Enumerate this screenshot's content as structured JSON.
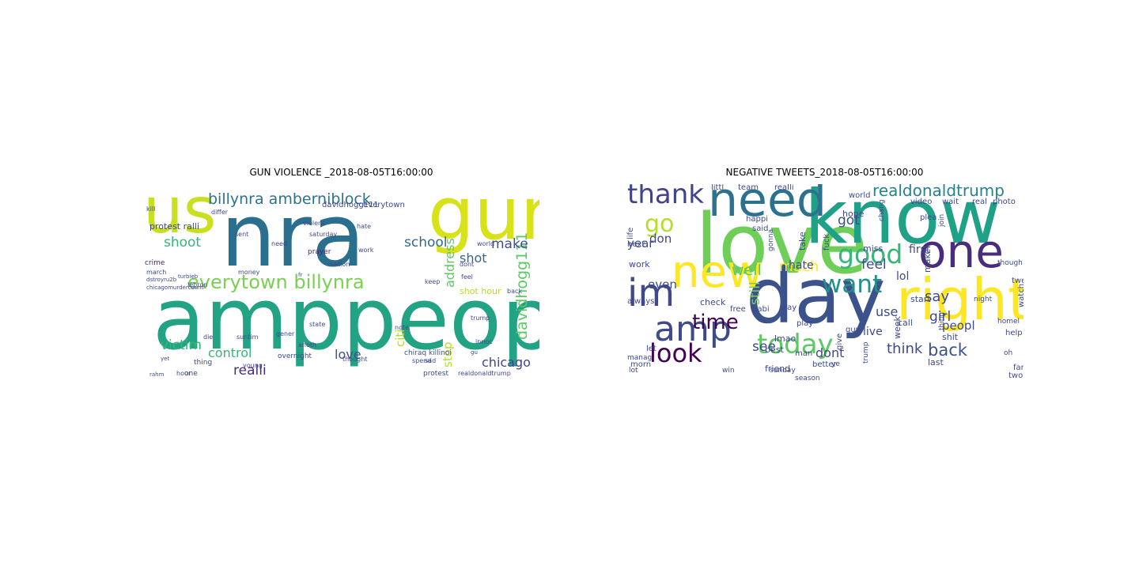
{
  "chart_data": [
    {
      "type": "wordcloud",
      "title": "GUN VIOLENCE _2018-08-05T16:00:00",
      "words": [
        {
          "text": "nra",
          "weight": 1.0,
          "color": "#2a6f8e"
        },
        {
          "text": "amppeopl",
          "weight": 0.98,
          "color": "#22a384"
        },
        {
          "text": "gun",
          "weight": 0.85,
          "color": "#d8e219"
        },
        {
          "text": "us",
          "weight": 0.72,
          "color": "#c8e020"
        },
        {
          "text": "everytown billynra",
          "weight": 0.3,
          "color": "#7ad151"
        },
        {
          "text": "billynra amberniblock",
          "weight": 0.26,
          "color": "#2c728e"
        },
        {
          "text": "chicago",
          "weight": 0.24,
          "color": "#414487"
        },
        {
          "text": "davidhogg111",
          "weight": 0.22,
          "color": "#5ec962"
        },
        {
          "text": "school",
          "weight": 0.21,
          "color": "#31688e"
        },
        {
          "text": "shoot",
          "weight": 0.21,
          "color": "#35b779"
        },
        {
          "text": "victim",
          "weight": 0.2,
          "color": "#35b779"
        },
        {
          "text": "realli",
          "weight": 0.2,
          "color": "#472d7b"
        },
        {
          "text": "love",
          "weight": 0.19,
          "color": "#3b528b"
        },
        {
          "text": "make",
          "weight": 0.19,
          "color": "#3b528b"
        },
        {
          "text": "shot",
          "weight": 0.19,
          "color": "#31688e"
        },
        {
          "text": "address",
          "weight": 0.17,
          "color": "#5ec962"
        },
        {
          "text": "control",
          "weight": 0.17,
          "color": "#35b779"
        },
        {
          "text": "citi",
          "weight": 0.17,
          "color": "#b5de2b"
        },
        {
          "text": "stop",
          "weight": 0.17,
          "color": "#b5de2b"
        },
        {
          "text": "protest ralli",
          "weight": 0.13,
          "color": "#3e4a89"
        },
        {
          "text": "shot hour",
          "weight": 0.13,
          "color": "#b5de2b"
        },
        {
          "text": "everytown",
          "weight": 0.1,
          "color": "#3e4a89"
        },
        {
          "text": "davidhogg111",
          "weight": 0.1,
          "color": "#3e4a89"
        },
        {
          "text": "crime",
          "weight": 0.09,
          "color": "#481f70"
        },
        {
          "text": "prayer",
          "weight": 0.09,
          "color": "#481f70"
        },
        {
          "text": "overnight",
          "weight": 0.09,
          "color": "#3e4a89"
        },
        {
          "text": "chiraq killinoi",
          "weight": 0.09,
          "color": "#3b528b"
        },
        {
          "text": "thing",
          "weight": 0.09,
          "color": "#3e4a89"
        },
        {
          "text": "one",
          "weight": 0.09,
          "color": "#3e4a89"
        },
        {
          "text": "protest",
          "weight": 0.09,
          "color": "#3e4a89"
        },
        {
          "text": "anoth",
          "weight": 0.08,
          "color": "#3e4a89"
        },
        {
          "text": "feel",
          "weight": 0.08,
          "color": "#3e4a89"
        },
        {
          "text": "dont",
          "weight": 0.08,
          "color": "#3e4a89"
        },
        {
          "text": "sad",
          "weight": 0.08,
          "color": "#3e4a89"
        },
        {
          "text": "trump",
          "weight": 0.08,
          "color": "#3e4a89"
        },
        {
          "text": "need",
          "weight": 0.08,
          "color": "#3e4a89"
        },
        {
          "text": "sent",
          "weight": 0.08,
          "color": "#3e4a89"
        },
        {
          "text": "differ",
          "weight": 0.08,
          "color": "#3e4a89"
        },
        {
          "text": "saturday",
          "weight": 0.08,
          "color": "#3e4a89"
        },
        {
          "text": "hour",
          "weight": 0.07,
          "color": "#3e4a89"
        },
        {
          "text": "young",
          "weight": 0.07,
          "color": "#3e4a89"
        },
        {
          "text": "suntim",
          "weight": 0.07,
          "color": "#3e4a89"
        },
        {
          "text": "hate",
          "weight": 0.07,
          "color": "#3e4a89"
        },
        {
          "text": "nation",
          "weight": 0.07,
          "color": "#3e4a89"
        },
        {
          "text": "work",
          "weight": 0.07,
          "color": "#3e4a89"
        },
        {
          "text": "money",
          "weight": 0.07,
          "color": "#3e4a89"
        },
        {
          "text": "lebron",
          "weight": 0.07,
          "color": "#3e4a89"
        },
        {
          "text": "march",
          "weight": 0.07,
          "color": "#3e4a89"
        },
        {
          "text": "gener",
          "weight": 0.07,
          "color": "#3e4a89"
        },
        {
          "text": "thought",
          "weight": 0.07,
          "color": "#3e4a89"
        },
        {
          "text": "spend",
          "weight": 0.07,
          "color": "#3e4a89"
        },
        {
          "text": "back",
          "weight": 0.07,
          "color": "#3e4a89"
        },
        {
          "text": "world",
          "weight": 0.07,
          "color": "#3e4a89"
        },
        {
          "text": "keep",
          "weight": 0.07,
          "color": "#3e4a89"
        },
        {
          "text": "die",
          "weight": 0.07,
          "color": "#3e4a89"
        },
        {
          "text": "innoc",
          "weight": 0.07,
          "color": "#3e4a89"
        },
        {
          "text": "note",
          "weight": 0.07,
          "color": "#3e4a89"
        },
        {
          "text": "state",
          "weight": 0.07,
          "color": "#3e4a89"
        },
        {
          "text": "kill",
          "weight": 0.07,
          "color": "#3e4a89"
        },
        {
          "text": "violenc",
          "weight": 0.07,
          "color": "#3e4a89"
        },
        {
          "text": "realdonaldtrump",
          "weight": 0.07,
          "color": "#3e4a89"
        },
        {
          "text": "chicagomurdercount",
          "weight": 0.07,
          "color": "#3e4a89"
        },
        {
          "text": "dstroyru2b",
          "weight": 0.07,
          "color": "#3e4a89"
        },
        {
          "text": "turbieb",
          "weight": 0.07,
          "color": "#3e4a89"
        },
        {
          "text": "fr",
          "weight": 0.06,
          "color": "#3e4a89"
        },
        {
          "text": "gu",
          "weight": 0.06,
          "color": "#3e4a89"
        },
        {
          "text": "yet",
          "weight": 0.06,
          "color": "#3e4a89"
        },
        {
          "text": "rahm",
          "weight": 0.06,
          "color": "#3e4a89"
        }
      ]
    },
    {
      "type": "wordcloud",
      "title": "NEGATIVE TWEETS_2018-08-05T16:00:00",
      "words": [
        {
          "text": "love",
          "weight": 1.0,
          "color": "#6ece58"
        },
        {
          "text": "know",
          "weight": 0.98,
          "color": "#1fa187"
        },
        {
          "text": "day",
          "weight": 0.97,
          "color": "#3b528b"
        },
        {
          "text": "right",
          "weight": 0.7,
          "color": "#fde725"
        },
        {
          "text": "one",
          "weight": 0.58,
          "color": "#472d7b"
        },
        {
          "text": "need",
          "weight": 0.56,
          "color": "#2c728e"
        },
        {
          "text": "new",
          "weight": 0.55,
          "color": "#fde725"
        },
        {
          "text": "im",
          "weight": 0.48,
          "color": "#3e4a89"
        },
        {
          "text": "amp",
          "weight": 0.45,
          "color": "#3e4a89"
        },
        {
          "text": "today",
          "weight": 0.36,
          "color": "#5ec962"
        },
        {
          "text": "thank",
          "weight": 0.36,
          "color": "#414487"
        },
        {
          "text": "good",
          "weight": 0.34,
          "color": "#35b779"
        },
        {
          "text": "look",
          "weight": 0.33,
          "color": "#440154"
        },
        {
          "text": "want",
          "weight": 0.32,
          "color": "#21918c"
        },
        {
          "text": "go",
          "weight": 0.3,
          "color": "#b5de2b"
        },
        {
          "text": "time",
          "weight": 0.26,
          "color": "#440154"
        },
        {
          "text": "back",
          "weight": 0.21,
          "color": "#3b528b"
        },
        {
          "text": "realdonaldtrump",
          "weight": 0.2,
          "color": "#26828e"
        },
        {
          "text": "well",
          "weight": 0.19,
          "color": "#5ec962"
        },
        {
          "text": "much",
          "weight": 0.18,
          "color": "#fde725"
        },
        {
          "text": "think",
          "weight": 0.18,
          "color": "#3e4a89"
        },
        {
          "text": "say",
          "weight": 0.18,
          "color": "#3e4a89"
        },
        {
          "text": "got",
          "weight": 0.17,
          "color": "#3e4a89"
        },
        {
          "text": "feel",
          "weight": 0.17,
          "color": "#3e4a89"
        },
        {
          "text": "girl",
          "weight": 0.17,
          "color": "#3e4a89"
        },
        {
          "text": "still",
          "weight": 0.17,
          "color": "#7ad151"
        },
        {
          "text": "see",
          "weight": 0.17,
          "color": "#3e4a89"
        },
        {
          "text": "dont",
          "weight": 0.17,
          "color": "#3e4a89"
        },
        {
          "text": "use",
          "weight": 0.16,
          "color": "#3e4a89"
        },
        {
          "text": "peopl",
          "weight": 0.15,
          "color": "#3e4a89"
        },
        {
          "text": "year",
          "weight": 0.15,
          "color": "#3e4a89"
        },
        {
          "text": "don",
          "weight": 0.15,
          "color": "#3e4a89"
        },
        {
          "text": "even",
          "weight": 0.15,
          "color": "#3e4a89"
        },
        {
          "text": "live",
          "weight": 0.14,
          "color": "#3e4a89"
        },
        {
          "text": "lol",
          "weight": 0.14,
          "color": "#3e4a89"
        },
        {
          "text": "first",
          "weight": 0.14,
          "color": "#3e4a89"
        },
        {
          "text": "hate",
          "weight": 0.13,
          "color": "#3e4a89"
        },
        {
          "text": "hope",
          "weight": 0.12,
          "color": "#3e4a89"
        },
        {
          "text": "work",
          "weight": 0.12,
          "color": "#3e4a89"
        },
        {
          "text": "friend",
          "weight": 0.12,
          "color": "#3e4a89"
        },
        {
          "text": "lmao",
          "weight": 0.11,
          "color": "#3e4a89"
        },
        {
          "text": "make",
          "weight": 0.11,
          "color": "#3e4a89"
        },
        {
          "text": "best",
          "weight": 0.11,
          "color": "#3e4a89"
        },
        {
          "text": "check",
          "weight": 0.11,
          "color": "#3e4a89"
        },
        {
          "text": "call",
          "weight": 0.11,
          "color": "#3e4a89"
        },
        {
          "text": "start",
          "weight": 0.11,
          "color": "#3e4a89"
        },
        {
          "text": "miss",
          "weight": 0.11,
          "color": "#3e4a89"
        },
        {
          "text": "week",
          "weight": 0.11,
          "color": "#3e4a89"
        },
        {
          "text": "shit",
          "weight": 0.11,
          "color": "#3e4a89"
        },
        {
          "text": "take",
          "weight": 0.11,
          "color": "#3e4a89"
        },
        {
          "text": "last",
          "weight": 0.11,
          "color": "#3e4a89"
        },
        {
          "text": "team",
          "weight": 0.1,
          "color": "#3e4a89"
        },
        {
          "text": "realli",
          "weight": 0.1,
          "color": "#3e4a89"
        },
        {
          "text": "littl",
          "weight": 0.1,
          "color": "#3e4a89"
        },
        {
          "text": "morn",
          "weight": 0.1,
          "color": "#3e4a89"
        },
        {
          "text": "let",
          "weight": 0.1,
          "color": "#3e4a89"
        },
        {
          "text": "always",
          "weight": 0.1,
          "color": "#3e4a89"
        },
        {
          "text": "next",
          "weight": 0.1,
          "color": "#3e4a89"
        },
        {
          "text": "life",
          "weight": 0.1,
          "color": "#3e4a89"
        },
        {
          "text": "happi",
          "weight": 0.1,
          "color": "#3e4a89"
        },
        {
          "text": "world",
          "weight": 0.1,
          "color": "#3e4a89"
        },
        {
          "text": "free",
          "weight": 0.1,
          "color": "#3e4a89"
        },
        {
          "text": "play",
          "weight": 0.1,
          "color": "#3e4a89"
        },
        {
          "text": "man",
          "weight": 0.1,
          "color": "#3e4a89"
        },
        {
          "text": "way",
          "weight": 0.1,
          "color": "#3e4a89"
        },
        {
          "text": "watch",
          "weight": 0.1,
          "color": "#3e4a89"
        },
        {
          "text": "better",
          "weight": 0.09,
          "color": "#3e4a89"
        },
        {
          "text": "two",
          "weight": 0.09,
          "color": "#3e4a89"
        },
        {
          "text": "fan",
          "weight": 0.09,
          "color": "#3e4a89"
        },
        {
          "text": "help",
          "weight": 0.09,
          "color": "#3e4a89"
        },
        {
          "text": "tweet",
          "weight": 0.09,
          "color": "#3e4a89"
        },
        {
          "text": "video",
          "weight": 0.09,
          "color": "#3e4a89"
        },
        {
          "text": "wait",
          "weight": 0.09,
          "color": "#3e4a89"
        },
        {
          "text": "real",
          "weight": 0.09,
          "color": "#3e4a89"
        },
        {
          "text": "photo",
          "weight": 0.09,
          "color": "#3e4a89"
        },
        {
          "text": "guy",
          "weight": 0.09,
          "color": "#3e4a89"
        },
        {
          "text": "babi",
          "weight": 0.09,
          "color": "#3e4a89"
        },
        {
          "text": "give",
          "weight": 0.09,
          "color": "#3e4a89"
        },
        {
          "text": "said",
          "weight": 0.09,
          "color": "#3e4a89"
        },
        {
          "text": "fuck",
          "weight": 0.09,
          "color": "#3e4a89"
        },
        {
          "text": "plea",
          "weight": 0.09,
          "color": "#3e4a89"
        },
        {
          "text": "gonna",
          "weight": 0.09,
          "color": "#3e4a89"
        },
        {
          "text": "though",
          "weight": 0.09,
          "color": "#3e4a89"
        },
        {
          "text": "sunday",
          "weight": 0.08,
          "color": "#3e4a89"
        },
        {
          "text": "lot",
          "weight": 0.08,
          "color": "#3e4a89"
        },
        {
          "text": "manag",
          "weight": 0.08,
          "color": "#3e4a89"
        },
        {
          "text": "homel",
          "weight": 0.08,
          "color": "#3e4a89"
        },
        {
          "text": "night",
          "weight": 0.08,
          "color": "#3e4a89"
        },
        {
          "text": "oh",
          "weight": 0.08,
          "color": "#3e4a89"
        },
        {
          "text": "ye",
          "weight": 0.08,
          "color": "#3e4a89"
        },
        {
          "text": "chang",
          "weight": 0.08,
          "color": "#3e4a89"
        },
        {
          "text": "join",
          "weight": 0.08,
          "color": "#3e4a89"
        },
        {
          "text": "win",
          "weight": 0.08,
          "color": "#3e4a89"
        },
        {
          "text": "season",
          "weight": 0.08,
          "color": "#3e4a89"
        },
        {
          "text": "thing",
          "weight": 0.08,
          "color": "#3e4a89"
        },
        {
          "text": "trump",
          "weight": 0.08,
          "color": "#3e4a89"
        }
      ]
    }
  ]
}
